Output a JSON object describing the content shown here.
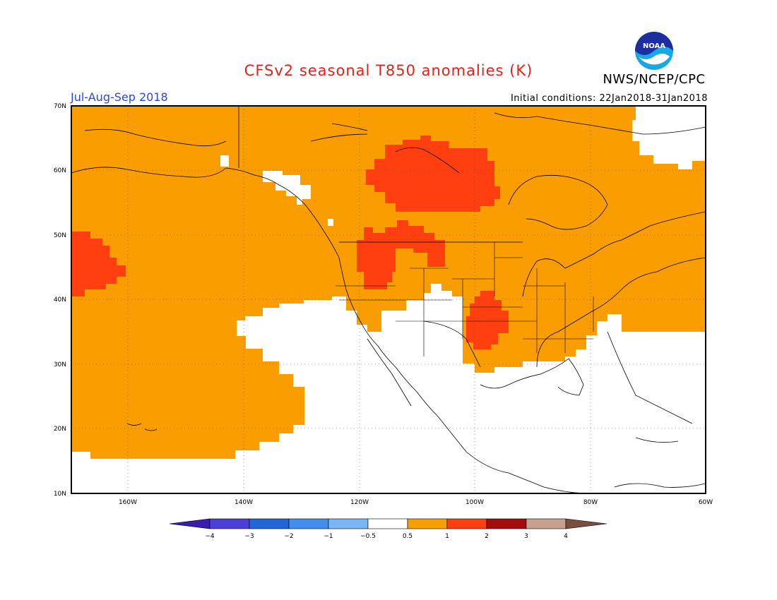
{
  "title": "CFSv2 seasonal T850 anomalies (K)",
  "organization": "NWS/NCEP/CPC",
  "logo_text": "NOAA",
  "period": "Jul-Aug-Sep 2018",
  "initial_conditions": "Initial conditions: 22Jan2018-31Jan2018",
  "lat_labels": [
    "70N",
    "60N",
    "50N",
    "40N",
    "30N",
    "20N",
    "10N"
  ],
  "lon_labels": [
    "160W",
    "140W",
    "120W",
    "100W",
    "80W",
    "60W"
  ],
  "colorbar": {
    "labels": [
      "−4",
      "−3",
      "−2",
      "−1",
      "−0.5",
      "0.5",
      "1",
      "2",
      "3",
      "4"
    ],
    "colors": [
      "#3a1db0",
      "#4a3fd6",
      "#1f66d6",
      "#3f8ef0",
      "#7ab6f5",
      "#ffffff",
      "#f99d00",
      "#ff3f10",
      "#a50d0d",
      "#c8a090",
      "#7a4e3e"
    ]
  },
  "colors": {
    "warm": "#f99d00",
    "hot": "#ff3f10",
    "neutral": "#ffffff"
  }
}
